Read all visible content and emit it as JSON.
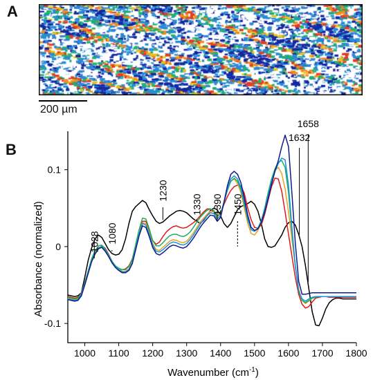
{
  "panels": {
    "a": "A",
    "b": "B"
  },
  "scale_bar": {
    "label": "200 µm"
  },
  "map_colors": [
    "#1428a0",
    "#2a8ad6",
    "#20b070",
    "#e8c41c",
    "#f08c1e",
    "#e03c28",
    "#ffffff"
  ],
  "chart_data": {
    "type": "line",
    "xlabel_main": "Wavenumber (cm",
    "xlabel_sup": "-1",
    "xlabel_end": ")",
    "ylabel": "Absorbance (normalized)",
    "xlim": [
      950,
      1800
    ],
    "ylim": [
      -0.125,
      0.15
    ],
    "xticks": [
      1000,
      1100,
      1200,
      1300,
      1400,
      1500,
      1600,
      1700,
      1800
    ],
    "yticks": [
      {
        "v": 0.1,
        "label": "0.1"
      },
      {
        "v": 0,
        "label": "0"
      },
      {
        "v": -0.1,
        "label": "-0.1"
      }
    ],
    "annotations": [
      {
        "x": 1028,
        "label": "1028"
      },
      {
        "x": 1080,
        "label": "1080"
      },
      {
        "x": 1230,
        "label": "1230"
      },
      {
        "x": 1330,
        "label": "1330"
      },
      {
        "x": 1390,
        "label": "1390"
      },
      {
        "x": 1450,
        "label": "1450"
      },
      {
        "x": 1632,
        "label": "1632"
      },
      {
        "x": 1658,
        "label": "1658"
      }
    ],
    "series": [
      {
        "color": "#000000",
        "y": [
          -0.063,
          -0.064,
          -0.065,
          -0.064,
          -0.06,
          -0.04,
          -0.018,
          -0.002,
          0.01,
          0.015,
          0.012,
          0.004,
          -0.004,
          -0.009,
          -0.011,
          -0.01,
          -0.004,
          0.01,
          0.03,
          0.046,
          0.052,
          0.056,
          0.06,
          0.057,
          0.048,
          0.04,
          0.033,
          0.03,
          0.032,
          0.036,
          0.04,
          0.043,
          0.046,
          0.047,
          0.046,
          0.044,
          0.04,
          0.036,
          0.033,
          0.03,
          0.034,
          0.04,
          0.047,
          0.05,
          0.048,
          0.04,
          0.03,
          0.025,
          0.03,
          0.039,
          0.048,
          0.052,
          0.054,
          0.056,
          0.059,
          0.055,
          0.046,
          0.03,
          0.01,
          0.0,
          -0.001,
          0.001,
          0.008,
          0.015,
          0.025,
          0.031,
          0.033,
          0.028,
          0.016,
          0.0,
          -0.025,
          -0.055,
          -0.085,
          -0.102,
          -0.103,
          -0.093,
          -0.081,
          -0.073,
          -0.069,
          -0.067,
          -0.067,
          -0.068,
          -0.068,
          -0.068,
          -0.068,
          -0.068
        ]
      },
      {
        "color": "#e01818",
        "y": [
          -0.065,
          -0.066,
          -0.067,
          -0.066,
          -0.06,
          -0.047,
          -0.032,
          -0.018,
          -0.009,
          -0.003,
          0.001,
          -0.002,
          -0.01,
          -0.019,
          -0.026,
          -0.029,
          -0.03,
          -0.029,
          -0.025,
          -0.016,
          0.002,
          0.02,
          0.033,
          0.033,
          0.021,
          0.008,
          0.003,
          0.006,
          0.013,
          0.019,
          0.023,
          0.026,
          0.027,
          0.025,
          0.024,
          0.025,
          0.028,
          0.031,
          0.035,
          0.04,
          0.045,
          0.049,
          0.049,
          0.045,
          0.039,
          0.044,
          0.055,
          0.065,
          0.073,
          0.078,
          0.08,
          0.079,
          0.069,
          0.05,
          0.035,
          0.025,
          0.024,
          0.028,
          0.042,
          0.06,
          0.078,
          0.089,
          0.088,
          0.072,
          0.045,
          0.016,
          -0.012,
          -0.04,
          -0.062,
          -0.075,
          -0.08,
          -0.078,
          -0.072,
          -0.067,
          -0.066,
          -0.065,
          -0.065,
          -0.066,
          -0.066,
          -0.066,
          -0.066,
          -0.066,
          -0.066,
          -0.066,
          -0.066,
          -0.066
        ]
      },
      {
        "color": "#e8a020",
        "y": [
          -0.067,
          -0.068,
          -0.069,
          -0.068,
          -0.062,
          -0.048,
          -0.033,
          -0.018,
          -0.008,
          -0.001,
          0.0,
          -0.004,
          -0.011,
          -0.019,
          -0.025,
          -0.029,
          -0.032,
          -0.032,
          -0.029,
          -0.02,
          -0.002,
          0.018,
          0.031,
          0.03,
          0.018,
          0.004,
          -0.004,
          -0.005,
          -0.001,
          0.003,
          0.007,
          0.009,
          0.008,
          0.006,
          0.005,
          0.007,
          0.012,
          0.018,
          0.025,
          0.032,
          0.037,
          0.042,
          0.046,
          0.045,
          0.038,
          0.042,
          0.058,
          0.074,
          0.085,
          0.088,
          0.082,
          0.07,
          0.05,
          0.03,
          0.017,
          0.015,
          0.021,
          0.031,
          0.047,
          0.066,
          0.084,
          0.099,
          0.103,
          0.095,
          0.075,
          0.045,
          0.01,
          -0.025,
          -0.055,
          -0.07,
          -0.074,
          -0.071,
          -0.067,
          -0.066,
          -0.065,
          -0.065,
          -0.065,
          -0.065,
          -0.065,
          -0.065,
          -0.065,
          -0.065,
          -0.065,
          -0.065,
          -0.065,
          -0.065
        ]
      },
      {
        "color": "#18b060",
        "y": [
          -0.066,
          -0.067,
          -0.068,
          -0.067,
          -0.061,
          -0.047,
          -0.032,
          -0.016,
          -0.006,
          0.001,
          0.002,
          -0.003,
          -0.011,
          -0.019,
          -0.025,
          -0.028,
          -0.03,
          -0.03,
          -0.026,
          -0.017,
          0.003,
          0.022,
          0.037,
          0.036,
          0.023,
          0.008,
          0.001,
          0.001,
          0.005,
          0.01,
          0.014,
          0.016,
          0.016,
          0.014,
          0.013,
          0.015,
          0.019,
          0.025,
          0.032,
          0.038,
          0.043,
          0.047,
          0.049,
          0.047,
          0.04,
          0.043,
          0.058,
          0.073,
          0.085,
          0.089,
          0.085,
          0.074,
          0.055,
          0.035,
          0.022,
          0.02,
          0.024,
          0.034,
          0.05,
          0.07,
          0.088,
          0.101,
          0.11,
          0.112,
          0.103,
          0.07,
          0.02,
          -0.025,
          -0.058,
          -0.07,
          -0.073,
          -0.07,
          -0.067,
          -0.066,
          -0.065,
          -0.065,
          -0.065,
          -0.065,
          -0.065,
          -0.065,
          -0.065,
          -0.065,
          -0.065,
          -0.065,
          -0.065,
          -0.065
        ]
      },
      {
        "color": "#1890e0",
        "y": [
          -0.068,
          -0.069,
          -0.07,
          -0.069,
          -0.063,
          -0.049,
          -0.034,
          -0.019,
          -0.009,
          -0.002,
          0.0,
          -0.005,
          -0.012,
          -0.02,
          -0.026,
          -0.03,
          -0.033,
          -0.033,
          -0.03,
          -0.021,
          -0.003,
          0.016,
          0.03,
          0.028,
          0.016,
          0.002,
          -0.006,
          -0.007,
          -0.004,
          0.0,
          0.004,
          0.006,
          0.005,
          0.003,
          0.002,
          0.004,
          0.009,
          0.015,
          0.022,
          0.029,
          0.035,
          0.04,
          0.044,
          0.043,
          0.036,
          0.04,
          0.057,
          0.075,
          0.088,
          0.092,
          0.088,
          0.077,
          0.058,
          0.037,
          0.022,
          0.02,
          0.023,
          0.033,
          0.048,
          0.066,
          0.084,
          0.098,
          0.108,
          0.115,
          0.113,
          0.08,
          0.025,
          -0.025,
          -0.058,
          -0.068,
          -0.071,
          -0.068,
          -0.066,
          -0.065,
          -0.065,
          -0.065,
          -0.065,
          -0.065,
          -0.065,
          -0.065,
          -0.065,
          -0.065,
          -0.065,
          -0.065,
          -0.065,
          -0.065
        ]
      },
      {
        "color": "#101a8c",
        "y": [
          -0.069,
          -0.07,
          -0.071,
          -0.07,
          -0.064,
          -0.05,
          -0.035,
          -0.02,
          -0.01,
          -0.003,
          -0.001,
          -0.006,
          -0.013,
          -0.021,
          -0.027,
          -0.031,
          -0.034,
          -0.034,
          -0.031,
          -0.022,
          -0.004,
          0.014,
          0.027,
          0.025,
          0.013,
          -0.001,
          -0.009,
          -0.011,
          -0.008,
          -0.004,
          0.0,
          0.002,
          0.001,
          -0.001,
          -0.002,
          0.0,
          0.005,
          0.011,
          0.018,
          0.025,
          0.031,
          0.036,
          0.041,
          0.04,
          0.033,
          0.038,
          0.058,
          0.079,
          0.094,
          0.098,
          0.094,
          0.083,
          0.063,
          0.041,
          0.025,
          0.021,
          0.023,
          0.031,
          0.045,
          0.062,
          0.081,
          0.098,
          0.112,
          0.13,
          0.145,
          0.13,
          0.07,
          0.005,
          -0.045,
          -0.062,
          -0.062,
          -0.061,
          -0.06,
          -0.06,
          -0.06,
          -0.06,
          -0.06,
          -0.06,
          -0.06,
          -0.06,
          -0.06,
          -0.06,
          -0.06,
          -0.06,
          -0.06,
          -0.06
        ]
      }
    ]
  }
}
